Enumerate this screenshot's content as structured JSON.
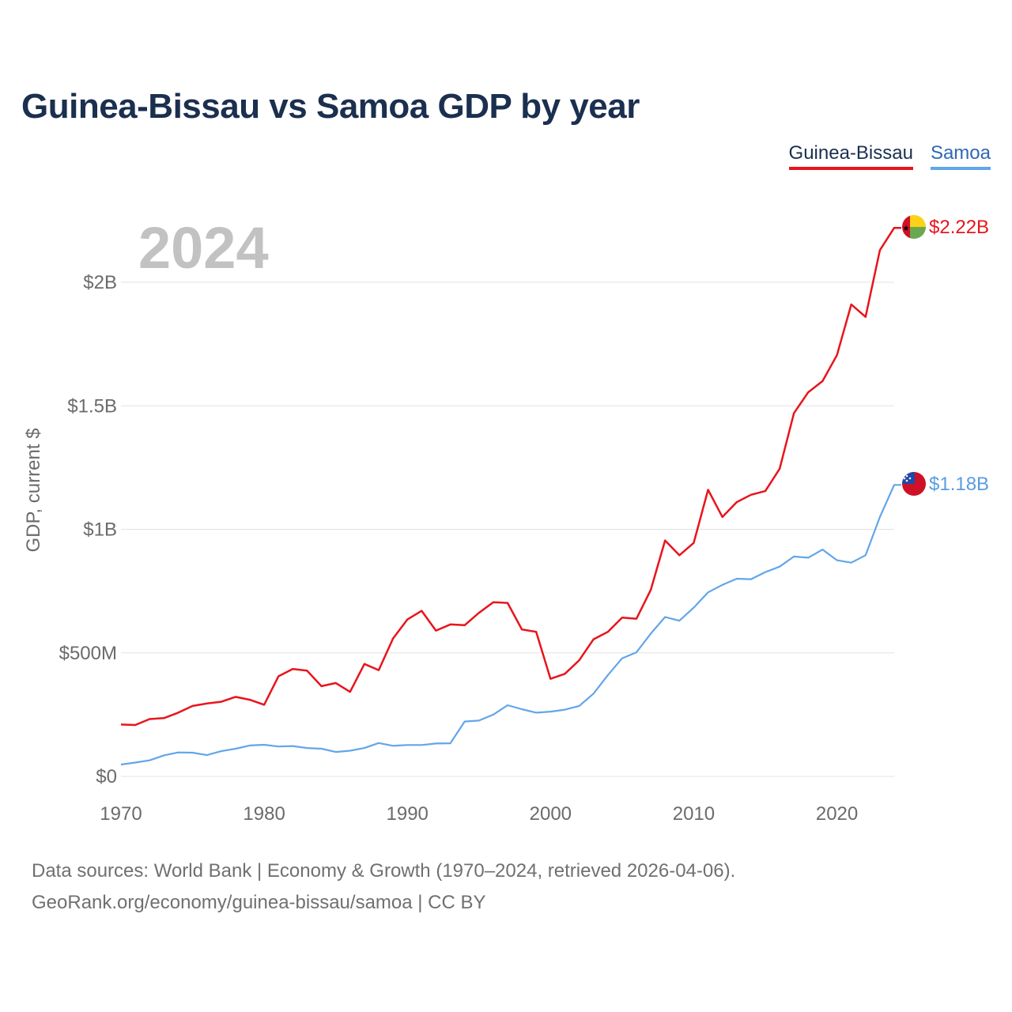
{
  "title": "Guinea-Bissau vs Samoa GDP by year",
  "legend": {
    "guinea_bissau": "Guinea-Bissau",
    "samoa": "Samoa"
  },
  "source": {
    "line1": "Data sources: World Bank | Economy & Growth (1970–2024, retrieved 2026-04-06).",
    "line2": "GeoRank.org/economy/guinea-bissau/samoa | CC BY"
  },
  "chart_data": {
    "type": "line",
    "year_label": "2024",
    "ylabel": "GDP, current $",
    "xlim": [
      1970,
      2024
    ],
    "ylim": [
      0,
      2250000000
    ],
    "x_ticks": [
      1970,
      1980,
      1990,
      2000,
      2010,
      2020
    ],
    "y_ticks": [
      {
        "value": 0,
        "label": "$0"
      },
      {
        "value": 500000000,
        "label": "$500M"
      },
      {
        "value": 1000000000,
        "label": "$1B"
      },
      {
        "value": 1500000000,
        "label": "$1.5B"
      },
      {
        "value": 2000000000,
        "label": "$2B"
      }
    ],
    "x": [
      1970,
      1971,
      1972,
      1973,
      1974,
      1975,
      1976,
      1977,
      1978,
      1979,
      1980,
      1981,
      1982,
      1983,
      1984,
      1985,
      1986,
      1987,
      1988,
      1989,
      1990,
      1991,
      1992,
      1993,
      1994,
      1995,
      1996,
      1997,
      1998,
      1999,
      2000,
      2001,
      2002,
      2003,
      2004,
      2005,
      2006,
      2007,
      2008,
      2009,
      2010,
      2011,
      2012,
      2013,
      2014,
      2015,
      2016,
      2017,
      2018,
      2019,
      2020,
      2021,
      2022,
      2023,
      2024
    ],
    "series": [
      {
        "name": "Guinea-Bissau",
        "color": "#e8141c",
        "end_label": "$2.22B",
        "values": [
          210000000,
          208000000,
          232000000,
          236000000,
          258000000,
          285000000,
          295000000,
          302000000,
          322000000,
          310000000,
          290000000,
          405000000,
          435000000,
          428000000,
          365000000,
          378000000,
          342000000,
          455000000,
          430000000,
          558000000,
          635000000,
          670000000,
          590000000,
          615000000,
          612000000,
          662000000,
          705000000,
          702000000,
          595000000,
          585000000,
          395000000,
          415000000,
          470000000,
          555000000,
          585000000,
          643000000,
          638000000,
          755000000,
          955000000,
          895000000,
          945000000,
          1160000000,
          1050000000,
          1110000000,
          1140000000,
          1155000000,
          1245000000,
          1470000000,
          1555000000,
          1600000000,
          1705000000,
          1910000000,
          1860000000,
          2130000000,
          2220000000
        ]
      },
      {
        "name": "Samoa",
        "color": "#62a6e8",
        "end_label": "$1.18B",
        "values": [
          48000000,
          56000000,
          65000000,
          85000000,
          97000000,
          96000000,
          86000000,
          102000000,
          112000000,
          125000000,
          128000000,
          121000000,
          123000000,
          115000000,
          112000000,
          99000000,
          104000000,
          115000000,
          135000000,
          124000000,
          127000000,
          127000000,
          133000000,
          134000000,
          222000000,
          226000000,
          250000000,
          288000000,
          272000000,
          258000000,
          262000000,
          270000000,
          285000000,
          335000000,
          410000000,
          478000000,
          502000000,
          578000000,
          645000000,
          630000000,
          683000000,
          745000000,
          775000000,
          800000000,
          798000000,
          827000000,
          849000000,
          890000000,
          885000000,
          918000000,
          875000000,
          865000000,
          895000000,
          1050000000,
          1180000000
        ]
      }
    ]
  }
}
